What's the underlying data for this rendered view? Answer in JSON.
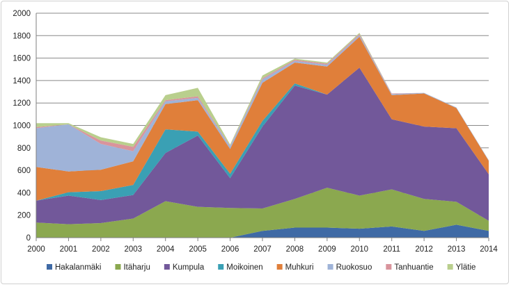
{
  "chart_data": {
    "type": "area",
    "stacked": true,
    "title": "",
    "xlabel": "",
    "ylabel": "",
    "x": [
      "2000",
      "2001",
      "2002",
      "2003",
      "2004",
      "2005",
      "2006",
      "2007",
      "2008",
      "2009",
      "2010",
      "2011",
      "2012",
      "2013",
      "2014"
    ],
    "ylim": [
      0,
      2000
    ],
    "yticks": [
      "0",
      "200",
      "400",
      "600",
      "800",
      "1000",
      "1200",
      "1400",
      "1600",
      "1800",
      "2000"
    ],
    "grid": true,
    "legend_position": "bottom",
    "series": [
      {
        "name": "Hakalanmäki",
        "color": "#3f6aa5",
        "values": [
          0,
          0,
          0,
          0,
          0,
          0,
          0,
          60,
          90,
          90,
          80,
          100,
          60,
          115,
          60
        ]
      },
      {
        "name": "Itäharju",
        "color": "#8ba84f",
        "values": [
          135,
          120,
          130,
          170,
          325,
          275,
          265,
          200,
          255,
          355,
          295,
          330,
          285,
          205,
          90
        ]
      },
      {
        "name": "Kumpula",
        "color": "#72589a",
        "values": [
          195,
          255,
          205,
          210,
          430,
          635,
          265,
          730,
          1010,
          830,
          1140,
          625,
          645,
          655,
          415
        ]
      },
      {
        "name": "Moikoinen",
        "color": "#3aa0b4",
        "values": [
          0,
          30,
          80,
          90,
          210,
          35,
          40,
          50,
          20,
          0,
          0,
          0,
          0,
          0,
          0
        ]
      },
      {
        "name": "Muhkuri",
        "color": "#e07f3a",
        "values": [
          300,
          185,
          190,
          210,
          225,
          280,
          220,
          340,
          185,
          250,
          275,
          215,
          295,
          180,
          120
        ]
      },
      {
        "name": "Ruokosuo",
        "color": "#9fb3d8",
        "values": [
          345,
          420,
          230,
          90,
          25,
          20,
          25,
          30,
          15,
          15,
          15,
          10,
          5,
          5,
          5
        ]
      },
      {
        "name": "Tanhuantie",
        "color": "#d9949c",
        "values": [
          10,
          0,
          30,
          40,
          10,
          15,
          5,
          10,
          10,
          10,
          10,
          5,
          0,
          0,
          0
        ]
      },
      {
        "name": "Ylätie",
        "color": "#b9cf8d",
        "values": [
          35,
          10,
          30,
          25,
          45,
          75,
          10,
          25,
          10,
          10,
          10,
          0,
          0,
          0,
          0
        ]
      }
    ]
  }
}
